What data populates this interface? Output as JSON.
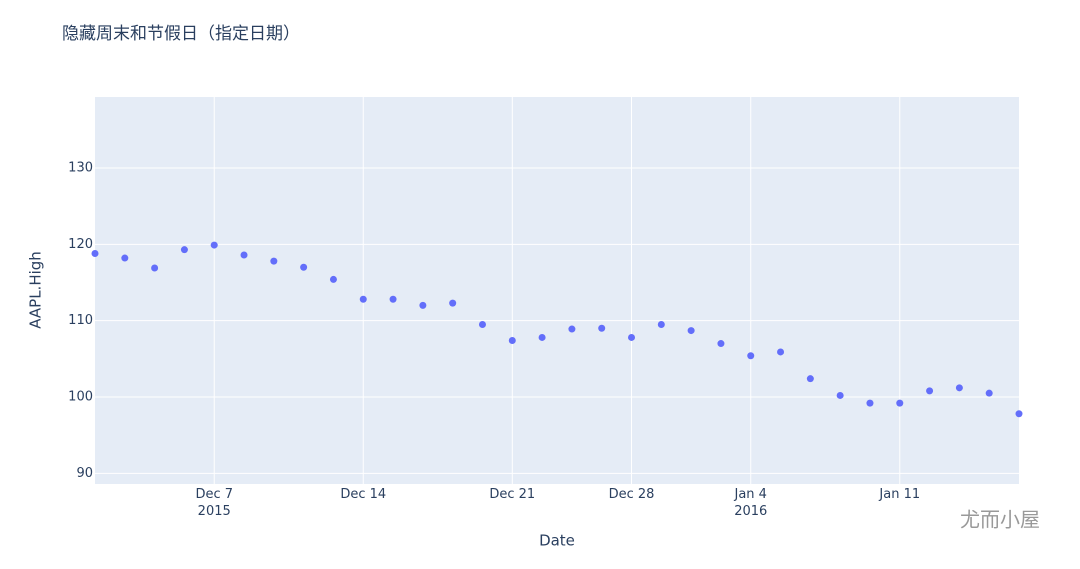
{
  "chart_data": {
    "type": "scatter",
    "title": "隐藏周末和节假日（指定日期）",
    "x_label": "Date",
    "y_label": "AAPL.High",
    "x": [
      "2015-12-01",
      "2015-12-02",
      "2015-12-03",
      "2015-12-04",
      "2015-12-07",
      "2015-12-08",
      "2015-12-09",
      "2015-12-10",
      "2015-12-11",
      "2015-12-14",
      "2015-12-15",
      "2015-12-16",
      "2015-12-17",
      "2015-12-18",
      "2015-12-21",
      "2015-12-22",
      "2015-12-23",
      "2015-12-24",
      "2015-12-28",
      "2015-12-29",
      "2015-12-30",
      "2015-12-31",
      "2016-01-04",
      "2016-01-05",
      "2016-01-06",
      "2016-01-07",
      "2016-01-08",
      "2016-01-11",
      "2016-01-12",
      "2016-01-13",
      "2016-01-14",
      "2016-01-15"
    ],
    "values": [
      118.8,
      118.2,
      116.9,
      119.3,
      119.9,
      118.6,
      117.8,
      117.0,
      115.4,
      112.8,
      112.8,
      112.0,
      112.3,
      109.5,
      107.4,
      107.8,
      108.9,
      109.0,
      107.8,
      109.5,
      108.7,
      107.0,
      105.4,
      105.9,
      102.4,
      100.2,
      99.2,
      99.2,
      100.8,
      101.2,
      100.5,
      97.8
    ],
    "color": "#636efa",
    "xlim": [
      "2015-12-01",
      "2016-01-15"
    ],
    "xticks": [
      {
        "value": "2015-12-07",
        "label": "Dec 7\n2015"
      },
      {
        "value": "2015-12-14",
        "label": "Dec 14"
      },
      {
        "value": "2015-12-21",
        "label": "Dec 21"
      },
      {
        "value": "2015-12-28",
        "label": "Dec 28"
      },
      {
        "value": "2016-01-04",
        "label": "Jan 4\n2016"
      },
      {
        "value": "2016-01-11",
        "label": "Jan 11"
      }
    ],
    "ylim": [
      88.6,
      139.3
    ],
    "yticks": [
      90,
      100,
      110,
      120,
      130
    ],
    "grid": true,
    "watermark": "尤而小屋"
  }
}
